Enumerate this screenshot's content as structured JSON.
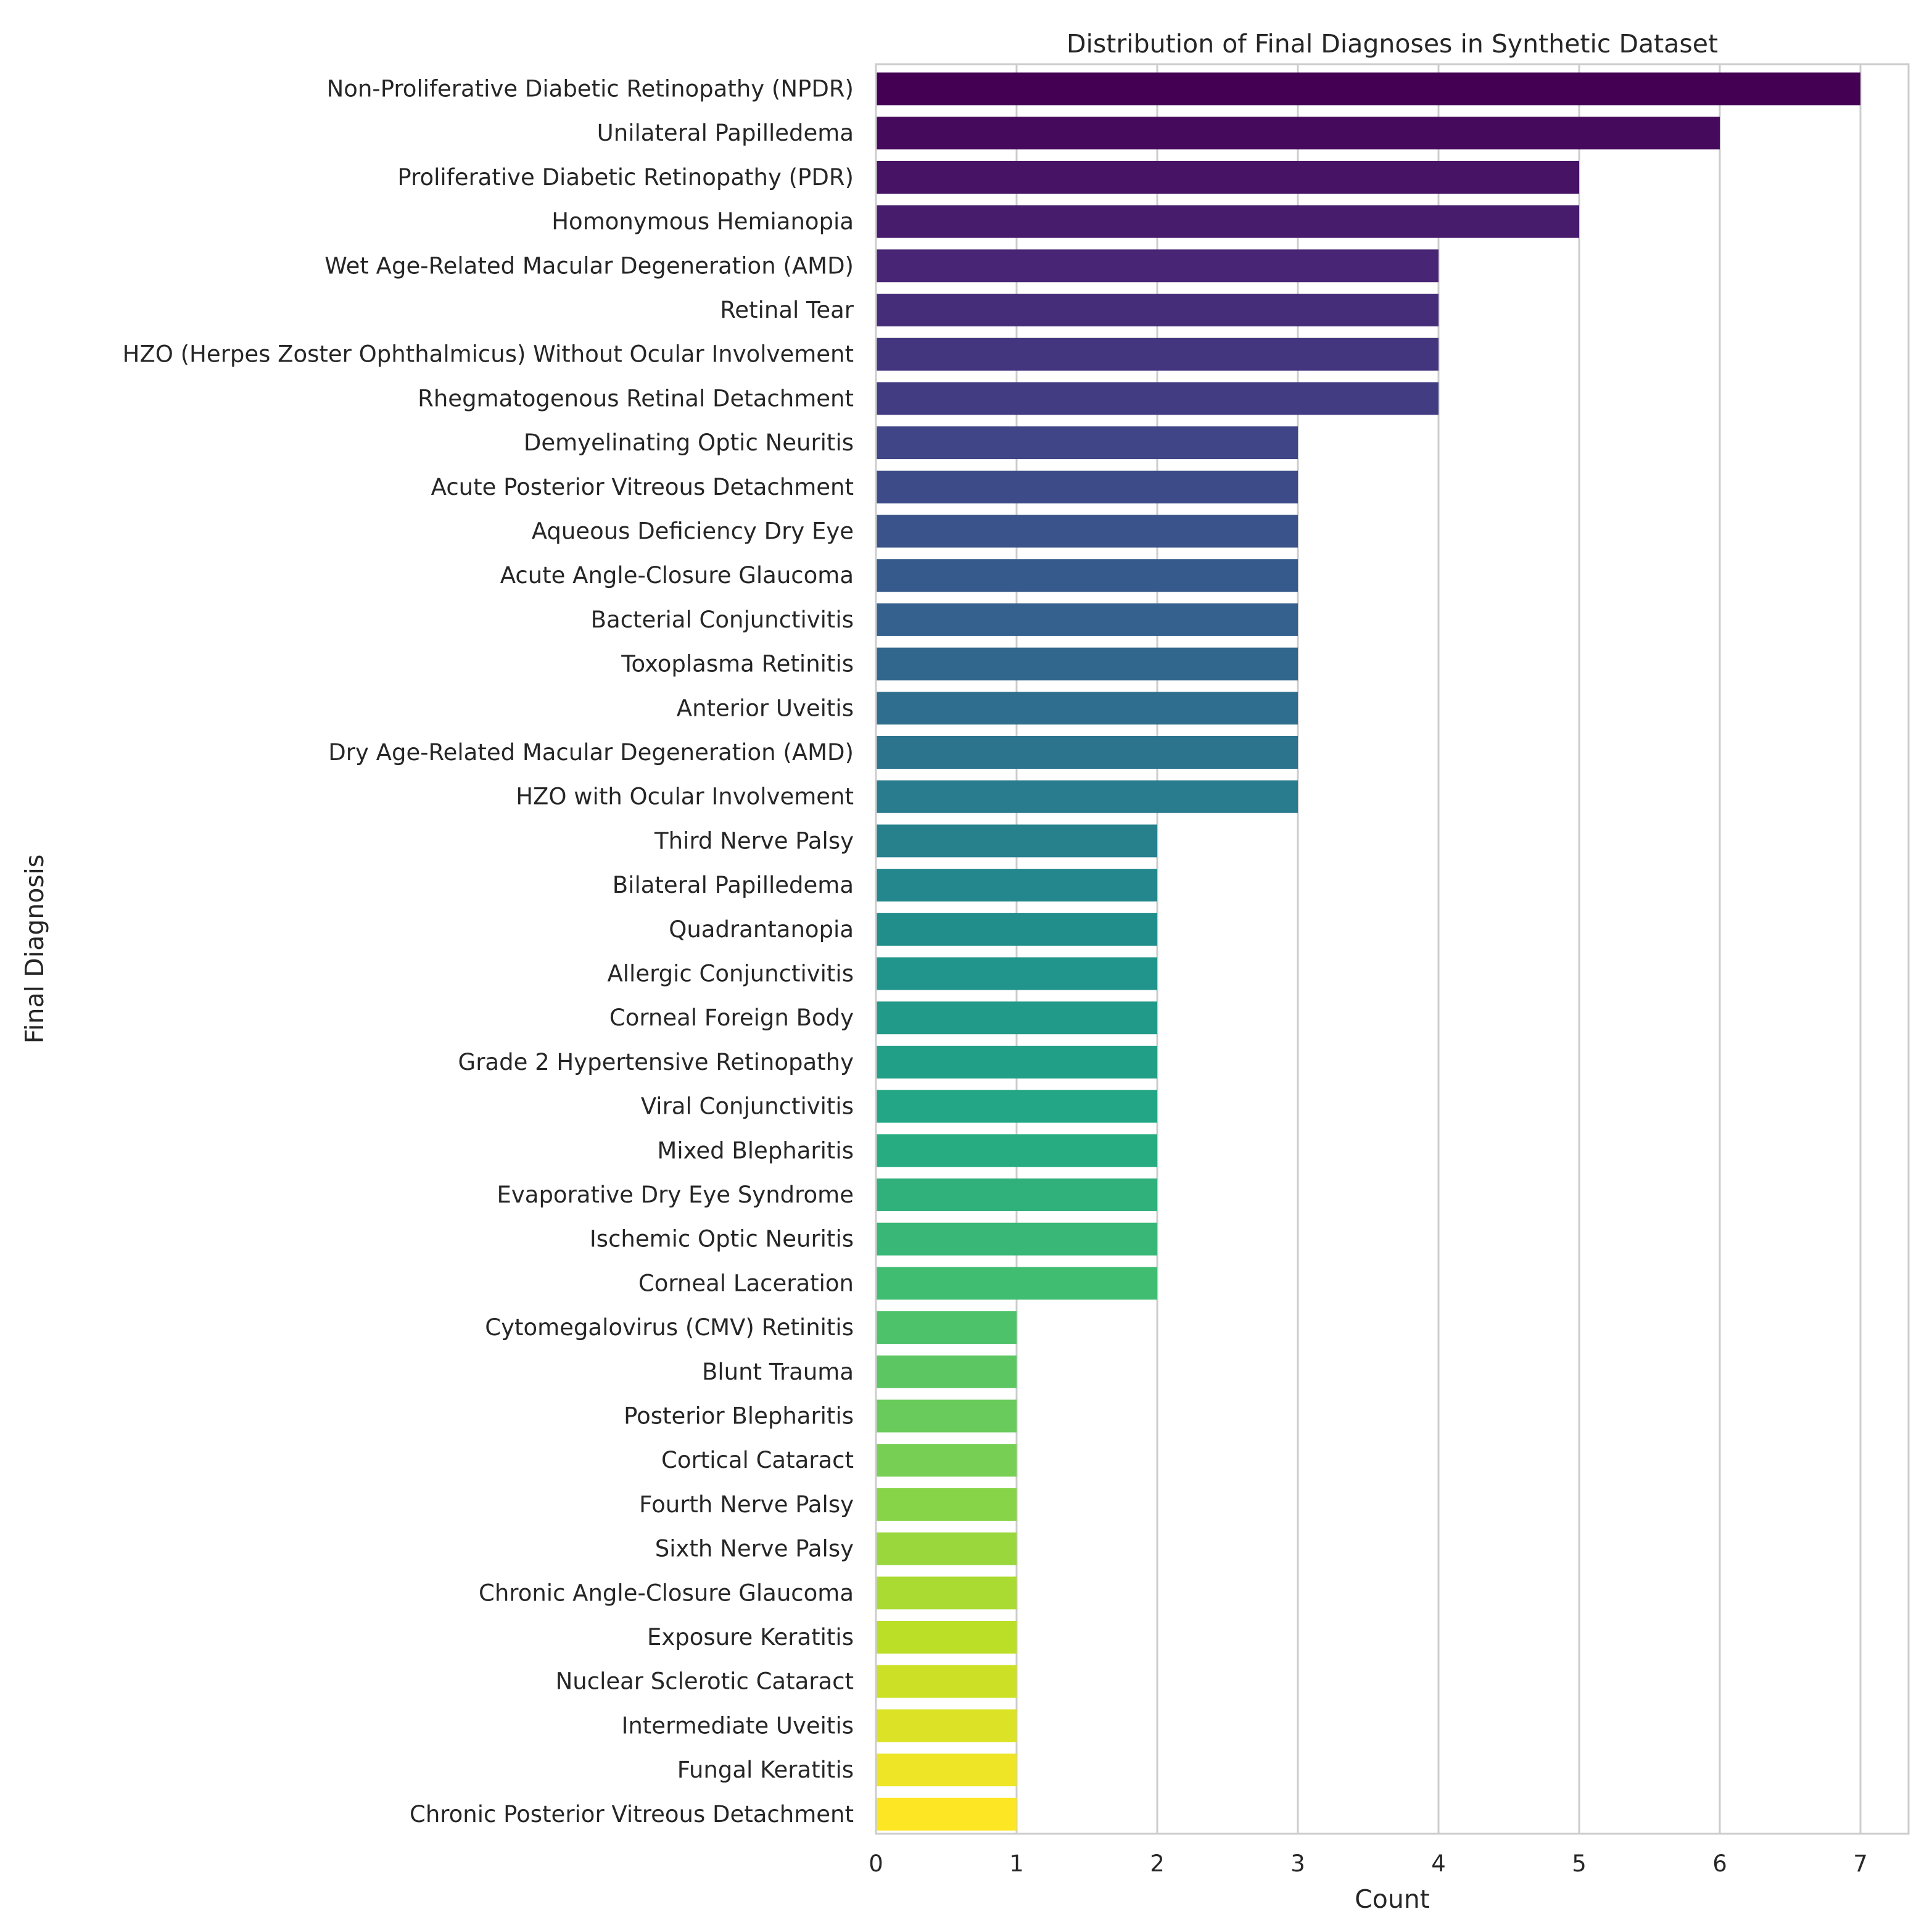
{
  "chart_data": {
    "type": "bar",
    "orientation": "horizontal",
    "title": "Distribution of Final Diagnoses in Synthetic Dataset",
    "xlabel": "Count",
    "ylabel": "Final Diagnosis",
    "xlim": [
      0,
      7.35
    ],
    "xticks": [
      0,
      1,
      2,
      3,
      4,
      5,
      6,
      7
    ],
    "grid": "vertical",
    "palette": "viridis",
    "colors": {
      "background": "#ffffff",
      "grid": "#cccccc",
      "spine": "#cccccc",
      "text": "#262626"
    },
    "categories": [
      "Non-Proliferative Diabetic Retinopathy (NPDR)",
      "Unilateral Papilledema",
      "Proliferative Diabetic Retinopathy (PDR)",
      "Homonymous Hemianopia",
      "Wet Age-Related Macular Degeneration (AMD)",
      "Retinal Tear",
      "HZO (Herpes Zoster Ophthalmicus) Without Ocular Involvement",
      "Rhegmatogenous Retinal Detachment",
      "Demyelinating Optic Neuritis",
      "Acute Posterior Vitreous Detachment",
      "Aqueous Deficiency Dry Eye",
      "Acute Angle-Closure Glaucoma",
      "Bacterial Conjunctivitis",
      "Toxoplasma Retinitis",
      "Anterior Uveitis",
      "Dry Age-Related Macular Degeneration (AMD)",
      "HZO with Ocular Involvement",
      "Third Nerve Palsy",
      "Bilateral Papilledema",
      "Quadrantanopia",
      "Allergic Conjunctivitis",
      "Corneal Foreign Body",
      "Grade 2 Hypertensive Retinopathy",
      "Viral Conjunctivitis",
      "Mixed Blepharitis",
      "Evaporative Dry Eye Syndrome",
      "Ischemic Optic Neuritis",
      "Corneal Laceration",
      "Cytomegalovirus (CMV) Retinitis",
      "Blunt Trauma",
      "Posterior Blepharitis",
      "Cortical Cataract",
      "Fourth Nerve Palsy",
      "Sixth Nerve Palsy",
      "Chronic Angle-Closure Glaucoma",
      "Exposure Keratitis",
      "Nuclear Sclerotic Cataract",
      "Intermediate Uveitis",
      "Fungal Keratitis",
      "Chronic Posterior Vitreous Detachment"
    ],
    "values": [
      7,
      6,
      5,
      5,
      4,
      4,
      4,
      4,
      3,
      3,
      3,
      3,
      3,
      3,
      3,
      3,
      3,
      2,
      2,
      2,
      2,
      2,
      2,
      2,
      2,
      2,
      2,
      2,
      1,
      1,
      1,
      1,
      1,
      1,
      1,
      1,
      1,
      1,
      1,
      1
    ]
  }
}
